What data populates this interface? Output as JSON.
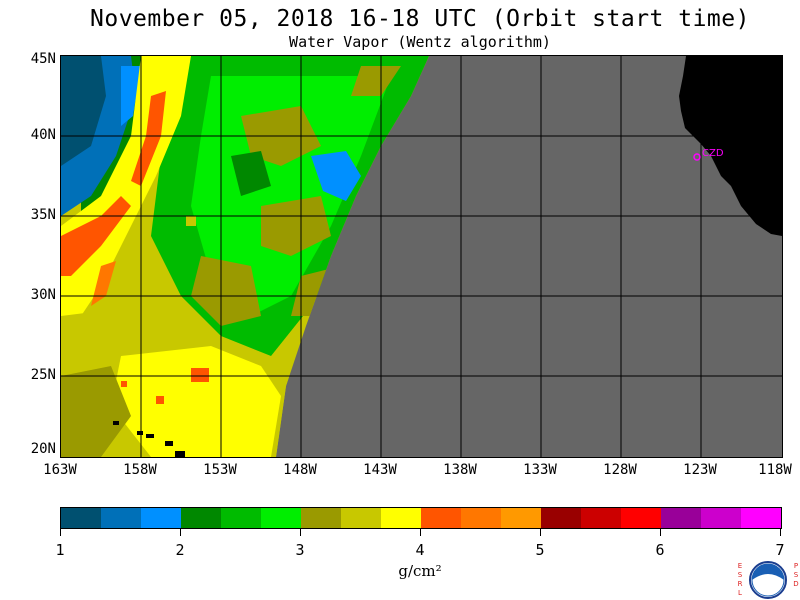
{
  "title": "November 05, 2018  16-18 UTC  (Orbit start time)",
  "subtitle": "Water Vapor (Wentz algorithm)",
  "map": {
    "lat_labels": [
      "45N",
      "40N",
      "35N",
      "30N",
      "25N",
      "20N"
    ],
    "lon_labels": [
      "163W",
      "158W",
      "153W",
      "148W",
      "143W",
      "138W",
      "133W",
      "128W",
      "123W",
      "118W"
    ],
    "station_label": "CZD",
    "colors": {
      "no_data": "#666666",
      "land": "#000000",
      "grid": "#000000",
      "station": "#ff00ff"
    }
  },
  "colorbar": {
    "colors": [
      "#005070",
      "#0070b8",
      "#0090ff",
      "#008800",
      "#00bb00",
      "#00ee00",
      "#9a9a00",
      "#c8c800",
      "#ffff00",
      "#ff5500",
      "#ff7700",
      "#ff9900",
      "#990000",
      "#cc0000",
      "#ff0000",
      "#990099",
      "#cc00cc",
      "#ff00ff"
    ],
    "tick_labels": [
      "1",
      "2",
      "3",
      "4",
      "5",
      "6",
      "7"
    ],
    "units": "g/cm²"
  },
  "logo": {
    "left_letters": [
      "E",
      "S",
      "R",
      "L"
    ],
    "right_letters": [
      "P",
      "S",
      "D"
    ],
    "center_text": "NOAA"
  }
}
